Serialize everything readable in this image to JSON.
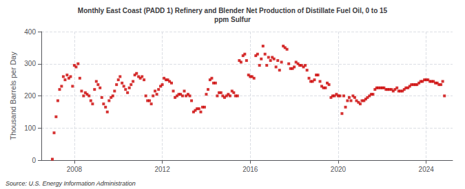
{
  "chart_data": {
    "type": "scatter",
    "title": "Monthly East Coast (PADD 1) Refinery and Blender Net Production of Distillate Fuel Oil, 0 to 15\nppm Sulfur",
    "ylabel": "Thousand Barrels per Day",
    "annotations": [
      "Source: U.S. Energy Information Administration"
    ],
    "color": "#CC0000",
    "marker": "square",
    "grid": true,
    "xlim": [
      2006.5,
      2025.2
    ],
    "xticks": [
      2008,
      2012,
      2016,
      2020,
      2024
    ],
    "ylim": [
      0,
      400
    ],
    "yticks": [
      0,
      100,
      200,
      300,
      400
    ],
    "x": [
      2007.0,
      2007.08,
      2007.17,
      2007.25,
      2007.33,
      2007.42,
      2007.5,
      2007.58,
      2007.67,
      2007.75,
      2007.83,
      2007.92,
      2008.0,
      2008.08,
      2008.17,
      2008.25,
      2008.33,
      2008.42,
      2008.5,
      2008.58,
      2008.67,
      2008.75,
      2008.83,
      2008.92,
      2009.0,
      2009.08,
      2009.17,
      2009.25,
      2009.33,
      2009.42,
      2009.5,
      2009.58,
      2009.67,
      2009.75,
      2009.83,
      2009.92,
      2010.0,
      2010.08,
      2010.17,
      2010.25,
      2010.33,
      2010.42,
      2010.5,
      2010.58,
      2010.67,
      2010.75,
      2010.83,
      2010.92,
      2011.0,
      2011.08,
      2011.17,
      2011.25,
      2011.33,
      2011.42,
      2011.5,
      2011.58,
      2011.67,
      2011.75,
      2011.83,
      2011.92,
      2012.0,
      2012.08,
      2012.17,
      2012.25,
      2012.33,
      2012.42,
      2012.5,
      2012.58,
      2012.67,
      2012.75,
      2012.83,
      2012.92,
      2013.0,
      2013.08,
      2013.17,
      2013.25,
      2013.33,
      2013.42,
      2013.5,
      2013.58,
      2013.67,
      2013.75,
      2013.83,
      2013.92,
      2014.0,
      2014.08,
      2014.17,
      2014.25,
      2014.33,
      2014.42,
      2014.5,
      2014.58,
      2014.67,
      2014.75,
      2014.83,
      2014.92,
      2015.0,
      2015.08,
      2015.17,
      2015.25,
      2015.33,
      2015.42,
      2015.5,
      2015.58,
      2015.67,
      2015.75,
      2015.83,
      2015.92,
      2016.0,
      2016.08,
      2016.17,
      2016.25,
      2016.33,
      2016.42,
      2016.5,
      2016.58,
      2016.67,
      2016.75,
      2016.83,
      2016.92,
      2017.0,
      2017.08,
      2017.17,
      2017.25,
      2017.33,
      2017.42,
      2017.5,
      2017.58,
      2017.67,
      2017.75,
      2017.83,
      2017.92,
      2018.0,
      2018.08,
      2018.17,
      2018.25,
      2018.33,
      2018.42,
      2018.5,
      2018.58,
      2018.67,
      2018.75,
      2018.83,
      2018.92,
      2019.0,
      2019.08,
      2019.17,
      2019.25,
      2019.33,
      2019.42,
      2019.5,
      2019.58,
      2019.67,
      2019.75,
      2019.83,
      2019.92,
      2020.0,
      2020.08,
      2020.17,
      2020.25,
      2020.33,
      2020.42,
      2020.5,
      2020.58,
      2020.67,
      2020.75,
      2020.83,
      2020.92,
      2021.0,
      2021.08,
      2021.17,
      2021.25,
      2021.33,
      2021.42,
      2021.5,
      2021.58,
      2021.67,
      2021.75,
      2021.83,
      2021.92,
      2022.0,
      2022.08,
      2022.17,
      2022.25,
      2022.33,
      2022.42,
      2022.5,
      2022.58,
      2022.67,
      2022.75,
      2022.83,
      2022.92,
      2023.0,
      2023.08,
      2023.17,
      2023.25,
      2023.33,
      2023.42,
      2023.5,
      2023.58,
      2023.67,
      2023.75,
      2023.83,
      2023.92,
      2024.0,
      2024.08,
      2024.17,
      2024.25,
      2024.33,
      2024.42,
      2024.5,
      2024.58,
      2024.67,
      2024.75,
      2024.83
    ],
    "values": [
      3.0,
      85.0,
      135.0,
      185.0,
      220.0,
      230.0,
      260.0,
      250.0,
      265.0,
      255.0,
      260.0,
      230.0,
      295.0,
      290.0,
      300.0,
      255.0,
      215.0,
      200.0,
      210.0,
      205.0,
      200.0,
      185.0,
      175.0,
      220.0,
      245.0,
      235.0,
      225.0,
      195.0,
      175.0,
      165.0,
      150.0,
      185.0,
      195.0,
      200.0,
      215.0,
      235.0,
      250.0,
      260.0,
      240.0,
      230.0,
      220.0,
      210.0,
      225.0,
      235.0,
      245.0,
      265.0,
      270.0,
      260.0,
      255.0,
      260.0,
      250.0,
      200.0,
      185.0,
      185.0,
      175.0,
      200.0,
      215.0,
      205.0,
      220.0,
      230.0,
      235.0,
      255.0,
      250.0,
      250.0,
      245.0,
      240.0,
      215.0,
      195.0,
      200.0,
      205.0,
      205.0,
      200.0,
      215.0,
      200.0,
      205.0,
      200.0,
      185.0,
      150.0,
      155.0,
      160.0,
      160.0,
      150.0,
      165.0,
      165.0,
      205.0,
      220.0,
      250.0,
      255.0,
      240.0,
      240.0,
      200.0,
      210.0,
      210.0,
      200.0,
      195.0,
      200.0,
      205.0,
      200.0,
      215.0,
      210.0,
      200.0,
      200.0,
      310.0,
      305.0,
      325.0,
      330.0,
      310.0,
      265.0,
      260.0,
      260.0,
      255.0,
      325.0,
      330.0,
      295.0,
      315.0,
      355.0,
      330.0,
      295.0,
      320.0,
      310.0,
      320.0,
      315.0,
      290.0,
      310.0,
      280.0,
      305.0,
      355.0,
      350.0,
      345.0,
      300.0,
      285.0,
      285.0,
      290.0,
      305.0,
      300.0,
      295.0,
      295.0,
      290.0,
      295.0,
      280.0,
      255.0,
      245.0,
      245.0,
      250.0,
      265.0,
      265.0,
      245.0,
      230.0,
      225.0,
      225.0,
      240.0,
      235.0,
      195.0,
      200.0,
      200.0,
      205.0,
      200.0,
      200.0,
      145.0,
      200.0,
      165.0,
      185.0,
      195.0,
      185.0,
      200.0,
      195.0,
      185.0,
      180.0,
      175.0,
      185.0,
      185.0,
      190.0,
      195.0,
      200.0,
      205.0,
      205.0,
      220.0,
      225.0,
      225.0,
      225.0,
      225.0,
      225.0,
      220.0,
      220.0,
      220.0,
      220.0,
      215.0,
      220.0,
      225.0,
      215.0,
      215.0,
      215.0,
      220.0,
      225.0,
      225.0,
      230.0,
      235.0,
      235.0,
      235.0,
      235.0,
      240.0,
      245.0,
      245.0,
      250.0,
      250.0,
      250.0,
      245.0,
      245.0,
      245.0,
      240.0,
      240.0,
      235.0,
      235.0,
      245.0,
      200.0
    ]
  }
}
